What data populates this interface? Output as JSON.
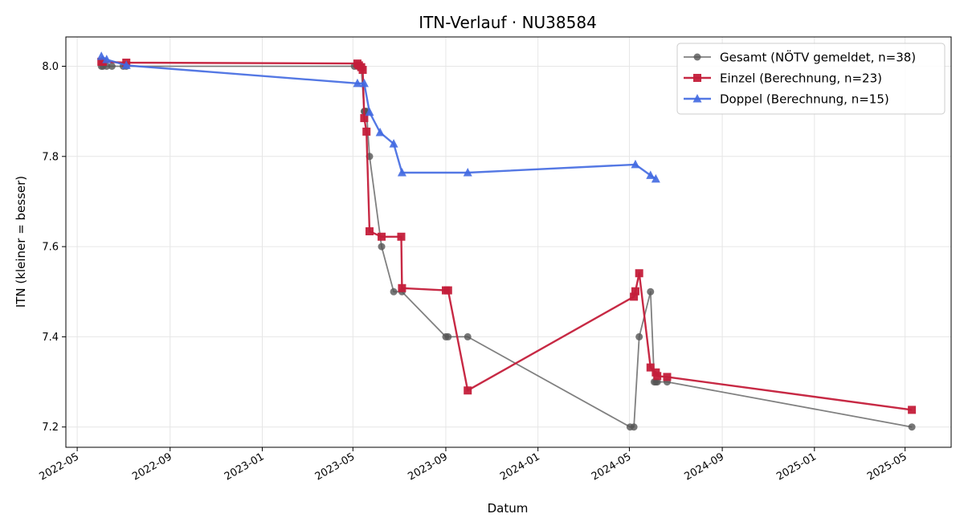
{
  "chart_data": {
    "type": "line",
    "title": "ITN-Verlauf · NU38584",
    "xlabel": "Datum",
    "ylabel": "ITN  (kleiner = besser)",
    "x_axis": "date",
    "xlim": [
      "2022-04-16",
      "2025-07-01"
    ],
    "ylim": [
      7.155,
      8.065
    ],
    "x_ticks": [
      "2022-05-01",
      "2022-09-01",
      "2023-01-01",
      "2023-05-01",
      "2023-09-01",
      "2024-01-01",
      "2024-05-01",
      "2024-09-01",
      "2025-01-01",
      "2025-05-01"
    ],
    "x_tick_labels": [
      "2022-05",
      "2022-09",
      "2023-01",
      "2023-05",
      "2023-09",
      "2024-01",
      "2024-05",
      "2024-09",
      "2025-01",
      "2025-05"
    ],
    "y_ticks": [
      7.2,
      7.4,
      7.6,
      7.8,
      8.0
    ],
    "y_tick_labels": [
      "7.2",
      "7.4",
      "7.6",
      "7.8",
      "8.0"
    ],
    "grid": true,
    "legend_position": "top-right",
    "series": [
      {
        "name": "Gesamt (NÖTV gemeldet, n=38)",
        "color": "#555555",
        "marker": "circle",
        "points": [
          [
            "2022-06-02",
            8.0
          ],
          [
            "2022-06-04",
            8.0
          ],
          [
            "2022-06-09",
            8.0
          ],
          [
            "2022-06-16",
            8.0
          ],
          [
            "2022-07-01",
            8.0
          ],
          [
            "2022-07-05",
            8.0
          ],
          [
            "2023-05-03",
            8.0
          ],
          [
            "2023-05-07",
            8.0
          ],
          [
            "2023-05-09",
            8.0
          ],
          [
            "2023-05-12",
            8.0
          ],
          [
            "2023-05-16",
            7.9
          ],
          [
            "2023-05-17",
            7.9
          ],
          [
            "2023-05-19",
            7.9
          ],
          [
            "2023-05-23",
            7.8
          ],
          [
            "2023-06-08",
            7.6
          ],
          [
            "2023-06-24",
            7.5
          ],
          [
            "2023-07-05",
            7.5
          ],
          [
            "2023-09-01",
            7.4
          ],
          [
            "2023-09-04",
            7.4
          ],
          [
            "2023-09-30",
            7.4
          ],
          [
            "2024-05-02",
            7.2
          ],
          [
            "2024-05-07",
            7.2
          ],
          [
            "2024-05-14",
            7.4
          ],
          [
            "2024-05-29",
            7.5
          ],
          [
            "2024-06-03",
            7.3
          ],
          [
            "2024-06-05",
            7.3
          ],
          [
            "2024-06-07",
            7.3
          ],
          [
            "2024-06-20",
            7.3
          ],
          [
            "2025-05-10",
            7.2
          ]
        ]
      },
      {
        "name": "Einzel (Berechnung, n=23)",
        "color": "#c41e3a",
        "marker": "square",
        "points": [
          [
            "2022-06-02",
            8.01
          ],
          [
            "2022-06-04",
            8.01
          ],
          [
            "2022-07-05",
            8.008
          ],
          [
            "2023-05-07",
            8.006
          ],
          [
            "2023-05-09",
            8.002
          ],
          [
            "2023-05-12",
            7.998
          ],
          [
            "2023-05-14",
            7.992
          ],
          [
            "2023-05-16",
            7.885
          ],
          [
            "2023-05-19",
            7.855
          ],
          [
            "2023-05-23",
            7.634
          ],
          [
            "2023-06-08",
            7.622
          ],
          [
            "2023-07-04",
            7.622
          ],
          [
            "2023-07-05",
            7.508
          ],
          [
            "2023-09-01",
            7.503
          ],
          [
            "2023-09-04",
            7.503
          ],
          [
            "2023-09-30",
            7.281
          ],
          [
            "2024-05-07",
            7.489
          ],
          [
            "2024-05-09",
            7.501
          ],
          [
            "2024-05-14",
            7.541
          ],
          [
            "2024-05-29",
            7.332
          ],
          [
            "2024-06-05",
            7.321
          ],
          [
            "2024-06-07",
            7.313
          ],
          [
            "2024-06-20",
            7.311
          ],
          [
            "2025-05-10",
            7.238
          ]
        ]
      },
      {
        "name": "Doppel (Berechnung, n=15)",
        "color": "#4169e1",
        "marker": "triangle",
        "points": [
          [
            "2022-06-02",
            8.022
          ],
          [
            "2022-06-09",
            8.015
          ],
          [
            "2022-07-05",
            8.002
          ],
          [
            "2023-05-07",
            7.962
          ],
          [
            "2023-05-16",
            7.962
          ],
          [
            "2023-05-23",
            7.898
          ],
          [
            "2023-06-06",
            7.853
          ],
          [
            "2023-06-24",
            7.828
          ],
          [
            "2023-07-05",
            7.764
          ],
          [
            "2023-09-30",
            7.764
          ],
          [
            "2024-05-09",
            7.782
          ],
          [
            "2024-05-29",
            7.758
          ],
          [
            "2024-06-05",
            7.75
          ]
        ]
      }
    ]
  }
}
